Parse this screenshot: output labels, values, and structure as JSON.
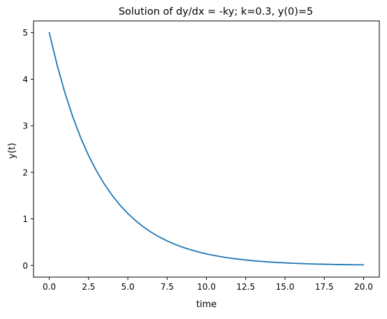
{
  "chart_data": {
    "type": "line",
    "title": "Solution of dy/dx = -ky; k=0.3, y(0)=5",
    "xlabel": "time",
    "ylabel": "y(t)",
    "xlim": [
      -1.0,
      21.0
    ],
    "ylim": [
      -0.25,
      5.25
    ],
    "x_ticks": [
      0.0,
      2.5,
      5.0,
      7.5,
      10.0,
      12.5,
      15.0,
      17.5,
      20.0
    ],
    "x_tick_labels": [
      "0.0",
      "2.5",
      "5.0",
      "7.5",
      "10.0",
      "12.5",
      "15.0",
      "17.5",
      "20.0"
    ],
    "y_ticks": [
      0,
      1,
      2,
      3,
      4,
      5
    ],
    "y_tick_labels": [
      "0",
      "1",
      "2",
      "3",
      "4",
      "5"
    ],
    "grid": false,
    "series": [
      {
        "color": "#1f77b4",
        "x": [
          0,
          0.5,
          1,
          1.5,
          2,
          2.5,
          3,
          3.5,
          4,
          4.5,
          5,
          5.5,
          6,
          6.5,
          7,
          7.5,
          8,
          8.5,
          9,
          9.5,
          10,
          10.5,
          11,
          11.5,
          12,
          12.5,
          13,
          13.5,
          14,
          14.5,
          15,
          15.5,
          16,
          16.5,
          17,
          17.5,
          18,
          18.5,
          19,
          19.5,
          20
        ],
        "y": [
          5.0,
          4.304,
          3.704,
          3.188,
          2.744,
          2.362,
          2.033,
          1.75,
          1.506,
          1.296,
          1.116,
          0.96,
          0.826,
          0.711,
          0.612,
          0.527,
          0.454,
          0.39,
          0.336,
          0.289,
          0.249,
          0.214,
          0.184,
          0.159,
          0.137,
          0.118,
          0.101,
          0.087,
          0.075,
          0.065,
          0.056,
          0.048,
          0.041,
          0.035,
          0.03,
          0.026,
          0.023,
          0.019,
          0.017,
          0.014,
          0.012
        ]
      }
    ]
  }
}
